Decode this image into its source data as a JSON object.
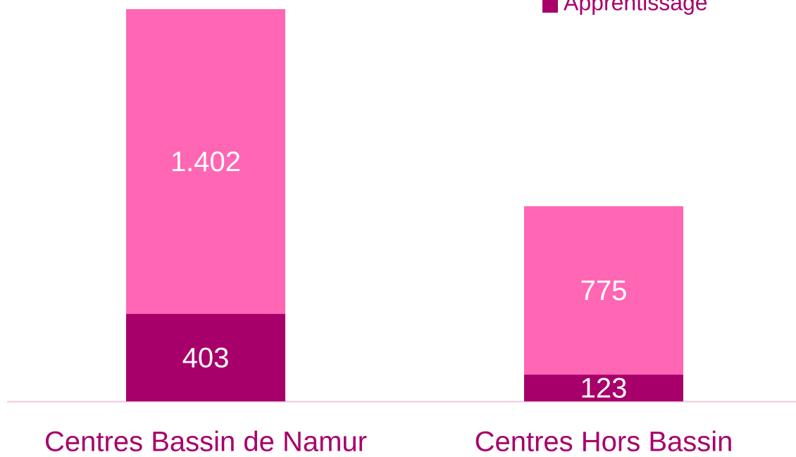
{
  "chart_data": {
    "type": "stacked_bar",
    "categories": [
      "Centres Bassin de Namur",
      "Centres Hors Bassin"
    ],
    "series": [
      {
        "name": "Apprentissage",
        "color": "#a8006b",
        "values": [
          403,
          123
        ]
      },
      {
        "color": "#ff66b3",
        "values": [
          1402,
          775
        ],
        "value_labels": [
          "1.402",
          "775"
        ]
      }
    ],
    "legend": "top-right"
  }
}
